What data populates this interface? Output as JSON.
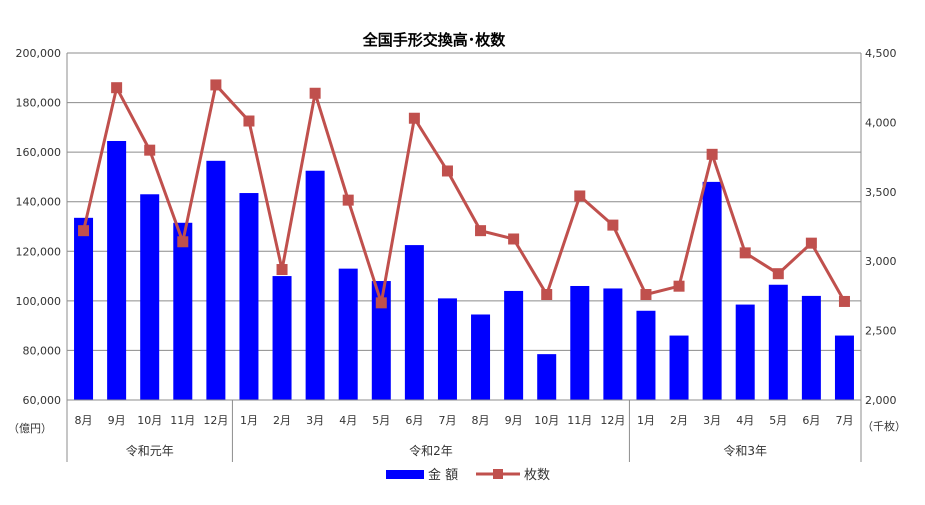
{
  "chart_data": {
    "type": "bar",
    "title": "全国手形交換高･枚数",
    "categories": [
      "8月",
      "9月",
      "10月",
      "11月",
      "12月",
      "1月",
      "2月",
      "3月",
      "4月",
      "5月",
      "6月",
      "7月",
      "8月",
      "9月",
      "10月",
      "11月",
      "12月",
      "1月",
      "2月",
      "3月",
      "4月",
      "5月",
      "6月",
      "7月"
    ],
    "eras": [
      {
        "label": "令和元年",
        "count": 5
      },
      {
        "label": "令和2年",
        "count": 12
      },
      {
        "label": "令和3年",
        "count": 7
      }
    ],
    "left_axis": {
      "unit": "（億円）",
      "min": 60000,
      "max": 200000,
      "step": 20000,
      "tick_labels": [
        "60,000",
        "80,000",
        "100,000",
        "120,000",
        "140,000",
        "160,000",
        "180,000",
        "200,000"
      ]
    },
    "right_axis": {
      "unit": "（千枚）",
      "min": 2000,
      "max": 4500,
      "step": 500,
      "tick_labels": [
        "2,000",
        "2,500",
        "3,000",
        "3,500",
        "4,000",
        "4,500"
      ]
    },
    "series": [
      {
        "name": "金 額",
        "type": "bar",
        "axis": "left",
        "color": "#0000ff",
        "values": [
          133500,
          164500,
          143000,
          131500,
          156500,
          143500,
          110000,
          152500,
          113000,
          108000,
          122500,
          101000,
          94500,
          104000,
          78500,
          106000,
          105000,
          96000,
          86000,
          148000,
          98500,
          106500,
          102000,
          86000
        ]
      },
      {
        "name": "枚数",
        "type": "line",
        "axis": "right",
        "color": "#c0504d",
        "values": [
          3220,
          4250,
          3800,
          3140,
          4270,
          4010,
          2940,
          4210,
          3440,
          2700,
          4030,
          3650,
          3220,
          3160,
          2760,
          3470,
          3260,
          2760,
          2820,
          3770,
          3060,
          2910,
          3130,
          2710
        ]
      }
    ],
    "legend_position": "bottom"
  }
}
